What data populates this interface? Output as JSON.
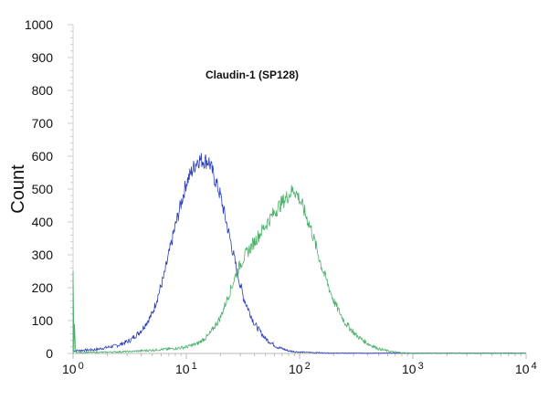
{
  "chart_data": {
    "type": "line",
    "title": "Claudin-1 (SP128)",
    "xlabel": "",
    "ylabel": "Count",
    "x_scale": "log",
    "xlim": [
      1,
      10000
    ],
    "ylim": [
      0,
      1000
    ],
    "x_ticks": [
      {
        "base": "10",
        "exp": "0"
      },
      {
        "base": "10",
        "exp": "1"
      },
      {
        "base": "10",
        "exp": "2"
      },
      {
        "base": "10",
        "exp": "3"
      },
      {
        "base": "10",
        "exp": "4"
      }
    ],
    "y_ticks": [
      0,
      100,
      200,
      300,
      400,
      500,
      600,
      700,
      800,
      900,
      1000
    ],
    "grid": false,
    "series": [
      {
        "color": "#2b3fb8",
        "points": [
          [
            1,
            8
          ],
          [
            1.6,
            12
          ],
          [
            2.5,
            25
          ],
          [
            3.2,
            40
          ],
          [
            4,
            70
          ],
          [
            5,
            120
          ],
          [
            6.3,
            230
          ],
          [
            7.9,
            380
          ],
          [
            10,
            520
          ],
          [
            12.6,
            590
          ],
          [
            15.8,
            585
          ],
          [
            20,
            480
          ],
          [
            25,
            330
          ],
          [
            28,
            250
          ],
          [
            32,
            170
          ],
          [
            40,
            90
          ],
          [
            50,
            45
          ],
          [
            63,
            20
          ],
          [
            80,
            8
          ],
          [
            100,
            4
          ],
          [
            200,
            1
          ],
          [
            10000,
            1
          ]
        ]
      },
      {
        "color": "#4caf6a",
        "points": [
          [
            1,
            250
          ],
          [
            1.05,
            3
          ],
          [
            2,
            4
          ],
          [
            3.2,
            6
          ],
          [
            5,
            10
          ],
          [
            7.9,
            15
          ],
          [
            10,
            20
          ],
          [
            12.6,
            30
          ],
          [
            15.8,
            55
          ],
          [
            20,
            110
          ],
          [
            25,
            200
          ],
          [
            28,
            250
          ],
          [
            32,
            290
          ],
          [
            40,
            340
          ],
          [
            50,
            390
          ],
          [
            63,
            440
          ],
          [
            79,
            480
          ],
          [
            89,
            500
          ],
          [
            100,
            470
          ],
          [
            126,
            380
          ],
          [
            158,
            260
          ],
          [
            200,
            160
          ],
          [
            251,
            95
          ],
          [
            316,
            55
          ],
          [
            398,
            30
          ],
          [
            501,
            14
          ],
          [
            631,
            6
          ],
          [
            794,
            2
          ],
          [
            1000,
            1
          ],
          [
            10000,
            1
          ]
        ]
      }
    ]
  }
}
